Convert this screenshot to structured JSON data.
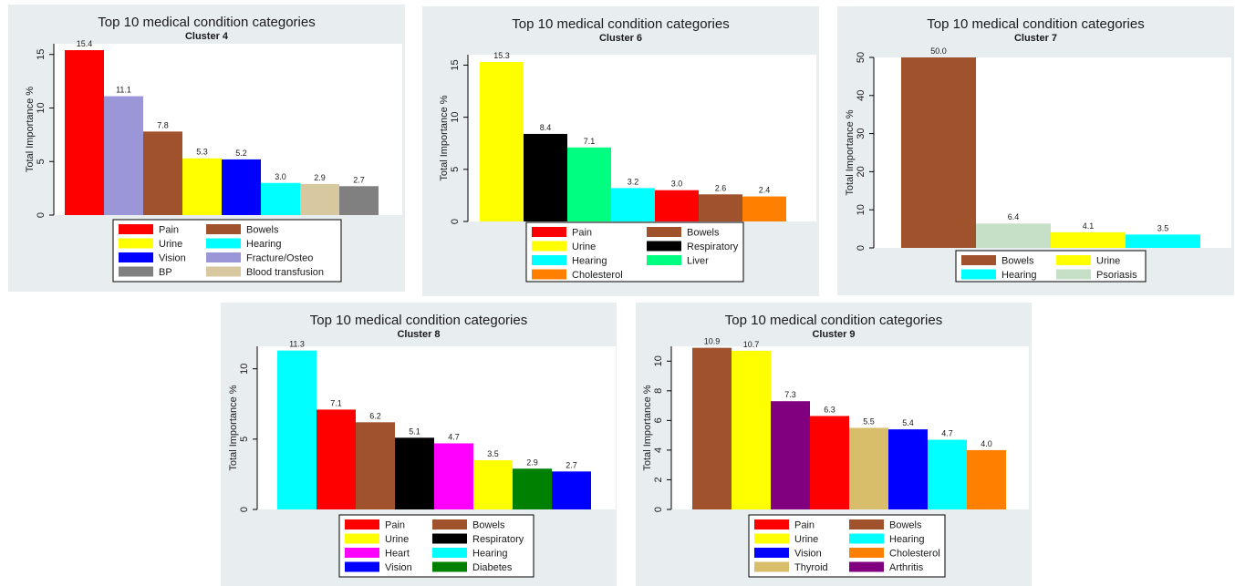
{
  "chart_data": [
    {
      "type": "bar",
      "title": "Top 10 medical condition categories",
      "subtitle": "Cluster 4",
      "ylabel": "Total Importance %",
      "ylim": [
        0,
        16
      ],
      "yticks": [
        0,
        5,
        10,
        15
      ],
      "grid": false,
      "legend_columns": 2,
      "series": [
        {
          "name": "Pain",
          "value": 15.4,
          "color": "#ff0000"
        },
        {
          "name": "Fracture/Osteo",
          "value": 11.1,
          "color": "#9a96d8"
        },
        {
          "name": "Bowels",
          "value": 7.8,
          "color": "#a0522d"
        },
        {
          "name": "Urine",
          "value": 5.3,
          "color": "#ffff00"
        },
        {
          "name": "Vision",
          "value": 5.2,
          "color": "#0000ff"
        },
        {
          "name": "Hearing",
          "value": 3.0,
          "color": "#00ffff"
        },
        {
          "name": "Blood transfusion",
          "value": 2.9,
          "color": "#d8c8a0"
        },
        {
          "name": "BP",
          "value": 2.7,
          "color": "#808080"
        }
      ],
      "legend_order": [
        "Pain",
        "Bowels",
        "Urine",
        "Hearing",
        "Vision",
        "Fracture/Osteo",
        "BP",
        "Blood transfusion"
      ]
    },
    {
      "type": "bar",
      "title": "Top 10 medical condition categories",
      "subtitle": "Cluster 6",
      "ylabel": "Total Importance %",
      "ylim": [
        0,
        16
      ],
      "yticks": [
        0,
        5,
        10,
        15
      ],
      "grid": false,
      "legend_columns": 2,
      "series": [
        {
          "name": "Urine",
          "value": 15.3,
          "color": "#ffff00"
        },
        {
          "name": "Respiratory",
          "value": 8.4,
          "color": "#000000"
        },
        {
          "name": "Liver",
          "value": 7.1,
          "color": "#00ff80"
        },
        {
          "name": "Hearing",
          "value": 3.2,
          "color": "#00ffff"
        },
        {
          "name": "Pain",
          "value": 3.0,
          "color": "#ff0000"
        },
        {
          "name": "Bowels",
          "value": 2.6,
          "color": "#a0522d"
        },
        {
          "name": "Cholesterol",
          "value": 2.4,
          "color": "#ff8000"
        }
      ],
      "legend_order": [
        "Pain",
        "Bowels",
        "Urine",
        "Respiratory",
        "Hearing",
        "Liver",
        "Cholesterol"
      ]
    },
    {
      "type": "bar",
      "title": "Top 10 medical condition categories",
      "subtitle": "Cluster 7",
      "ylabel": "Total Importance %",
      "ylim": [
        0,
        50
      ],
      "yticks": [
        0,
        10,
        20,
        30,
        40,
        50
      ],
      "grid": false,
      "legend_columns": 2,
      "series": [
        {
          "name": "Bowels",
          "value": 50.0,
          "color": "#a0522d"
        },
        {
          "name": "Psoriasis",
          "value": 6.4,
          "color": "#c6e0c8"
        },
        {
          "name": "Urine",
          "value": 4.1,
          "color": "#ffff00"
        },
        {
          "name": "Hearing",
          "value": 3.5,
          "color": "#00ffff"
        }
      ],
      "legend_order": [
        "Bowels",
        "Urine",
        "Hearing",
        "Psoriasis"
      ]
    },
    {
      "type": "bar",
      "title": "Top 10 medical condition categories",
      "subtitle": "Cluster 8",
      "ylabel": "Total Importance %",
      "ylim": [
        0,
        11.6
      ],
      "yticks": [
        0,
        5,
        10
      ],
      "grid": false,
      "legend_columns": 2,
      "series": [
        {
          "name": "Hearing",
          "value": 11.3,
          "color": "#00ffff"
        },
        {
          "name": "Pain",
          "value": 7.1,
          "color": "#ff0000"
        },
        {
          "name": "Bowels",
          "value": 6.2,
          "color": "#a0522d"
        },
        {
          "name": "Respiratory",
          "value": 5.1,
          "color": "#000000"
        },
        {
          "name": "Heart",
          "value": 4.7,
          "color": "#ff00ff"
        },
        {
          "name": "Urine",
          "value": 3.5,
          "color": "#ffff00"
        },
        {
          "name": "Diabetes",
          "value": 2.9,
          "color": "#008000"
        },
        {
          "name": "Vision",
          "value": 2.7,
          "color": "#0000ff"
        }
      ],
      "legend_order": [
        "Pain",
        "Bowels",
        "Urine",
        "Respiratory",
        "Heart",
        "Hearing",
        "Vision",
        "Diabetes"
      ]
    },
    {
      "type": "bar",
      "title": "Top 10 medical condition categories",
      "subtitle": "Cluster 9",
      "ylabel": "Total Importance %",
      "ylim": [
        0,
        11
      ],
      "yticks": [
        0,
        2,
        4,
        6,
        8,
        10
      ],
      "grid": false,
      "legend_columns": 2,
      "series": [
        {
          "name": "Bowels",
          "value": 10.9,
          "color": "#a0522d"
        },
        {
          "name": "Urine",
          "value": 10.7,
          "color": "#ffff00"
        },
        {
          "name": "Arthritis",
          "value": 7.3,
          "color": "#800080"
        },
        {
          "name": "Pain",
          "value": 6.3,
          "color": "#ff0000"
        },
        {
          "name": "Thyroid",
          "value": 5.5,
          "color": "#d8be6a"
        },
        {
          "name": "Vision",
          "value": 5.4,
          "color": "#0000ff"
        },
        {
          "name": "Hearing",
          "value": 4.7,
          "color": "#00ffff"
        },
        {
          "name": "Cholesterol",
          "value": 4.0,
          "color": "#ff8000"
        }
      ],
      "legend_order": [
        "Pain",
        "Bowels",
        "Urine",
        "Hearing",
        "Vision",
        "Cholesterol",
        "Thyroid",
        "Arthritis"
      ]
    }
  ]
}
